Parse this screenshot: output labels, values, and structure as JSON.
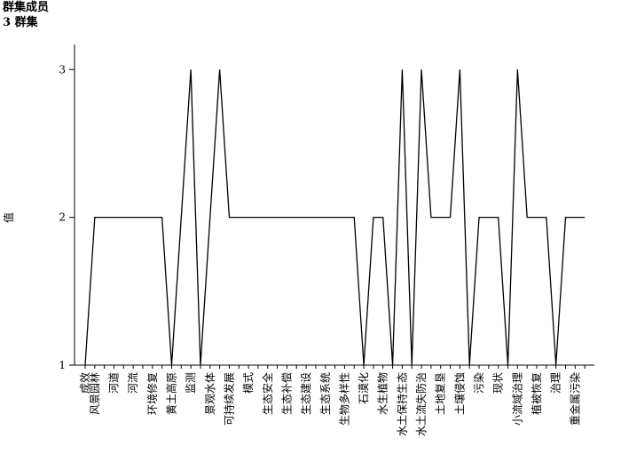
{
  "chart_data": {
    "type": "line",
    "title": "群集成员",
    "subtitle": "3 群集",
    "y_label": "值",
    "categories": [
      "成效",
      "风景园林",
      null,
      "河道",
      null,
      "河流",
      null,
      "环境修复",
      null,
      "黄土高原",
      null,
      "监测",
      null,
      "景观水体",
      null,
      "可持续发展",
      null,
      "模式",
      null,
      "生态安全",
      null,
      "生态补偿",
      null,
      "生态建设",
      null,
      "生态系统",
      null,
      "生物多样性",
      null,
      "石漠化",
      null,
      "水生植物",
      null,
      "水土保持生态",
      null,
      "水土流失防治",
      null,
      "土地复垦",
      null,
      "土壤侵蚀",
      null,
      "污染",
      null,
      "现状",
      null,
      "小流域治理",
      null,
      "植被恢复",
      null,
      "治理",
      null,
      "重金属污染",
      null
    ],
    "values": [
      1,
      2,
      2,
      2,
      2,
      2,
      2,
      2,
      2,
      1,
      2,
      3,
      1,
      2,
      3,
      2,
      2,
      2,
      2,
      2,
      2,
      2,
      2,
      2,
      2,
      2,
      2,
      2,
      2,
      1,
      2,
      2,
      1,
      3,
      1,
      3,
      2,
      2,
      2,
      3,
      1,
      2,
      2,
      2,
      1,
      3,
      2,
      2,
      2,
      1,
      2,
      2,
      2
    ],
    "color": "#000000",
    "ylim": [
      1,
      3.17
    ],
    "yticks": [
      1,
      2,
      3
    ],
    "grid": false
  }
}
